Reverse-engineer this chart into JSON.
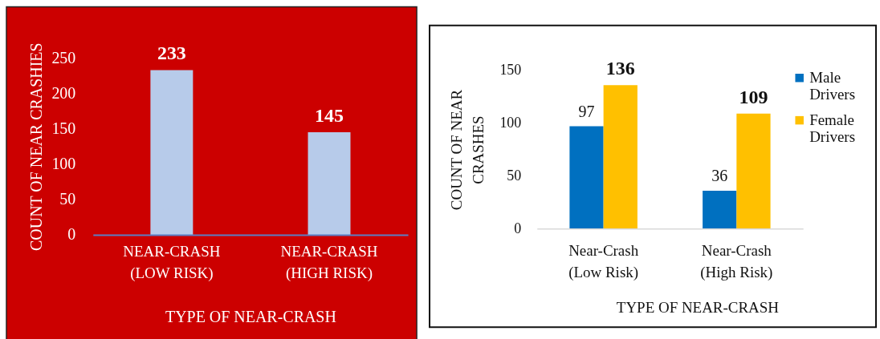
{
  "chart_data": [
    {
      "type": "bar",
      "xlabel": "TYPE OF NEAR-CRASH",
      "ylabel": "COUNT OF NEAR CRASHIES",
      "categories": [
        "NEAR-CRASH\n(LOW RISK)",
        "NEAR-CRASH\n(HIGH RISK)"
      ],
      "values": [
        233,
        145
      ],
      "color": "#b7cbea",
      "ylim": [
        0,
        250
      ],
      "yticks": [
        0,
        50,
        100,
        150,
        200,
        250
      ],
      "data_labels": true
    },
    {
      "type": "bar",
      "xlabel": "TYPE OF NEAR-CRASH",
      "ylabel": "COUNT OF NEAR\nCRASHES",
      "categories": [
        "Near-Crash\n(Low Risk)",
        "Near-Crash\n(High Risk)"
      ],
      "series": [
        {
          "name": "Male Drivers",
          "color": "#0070c0",
          "values": [
            97,
            36
          ]
        },
        {
          "name": "Female Drivers",
          "color": "#ffc000",
          "values": [
            136,
            109
          ]
        }
      ],
      "ylim": [
        0,
        150
      ],
      "yticks": [
        0,
        50,
        100,
        150
      ],
      "data_labels": true,
      "legend": "right"
    }
  ]
}
